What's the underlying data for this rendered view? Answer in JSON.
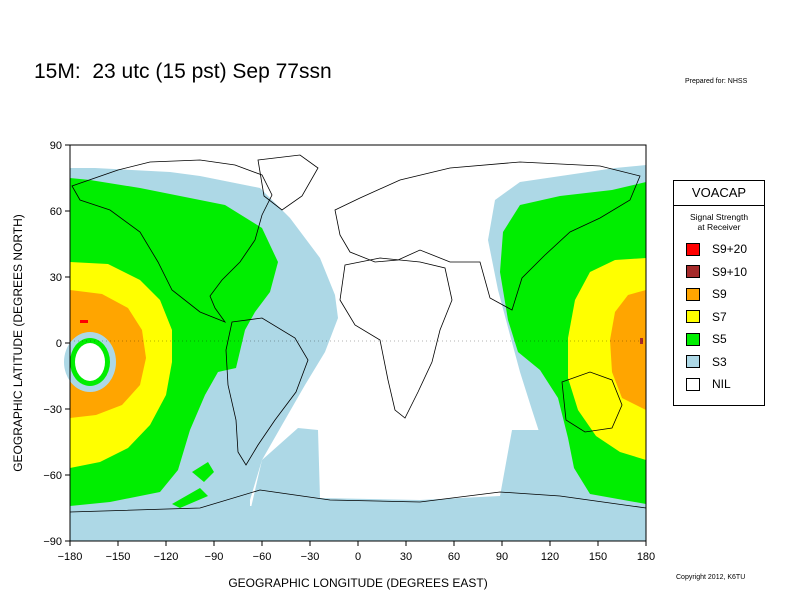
{
  "header": {
    "title": "15M:  23 utc (15 pst) Sep 77ssn",
    "prepared_for": "Prepared for: NHSS"
  },
  "footer": {
    "copyright": "Copyright 2012, K6TU"
  },
  "legend": {
    "title": "VOACAP",
    "subtitle_line1": "Signal Strength",
    "subtitle_line2": "at Receiver",
    "items": [
      {
        "label": "S9+20",
        "color": "#ff0000"
      },
      {
        "label": "S9+10",
        "color": "#a52a2a"
      },
      {
        "label": "S9",
        "color": "#ffa500"
      },
      {
        "label": "S7",
        "color": "#ffff00"
      },
      {
        "label": "S5",
        "color": "#00ee00"
      },
      {
        "label": "S3",
        "color": "#add8e6"
      },
      {
        "label": "NIL",
        "color": "#ffffff"
      }
    ]
  },
  "map": {
    "xlabel": "GEOGRAPHIC LONGITUDE (DEGREES EAST)",
    "ylabel": "GEOGRAPHIC LATITUDE (DEGREES NORTH)",
    "x_ticks": [
      "−180",
      "−150",
      "−120",
      "−90",
      "−60",
      "−30",
      "0",
      "30",
      "60",
      "90",
      "120",
      "150",
      "180"
    ],
    "y_ticks": [
      "90",
      "60",
      "30",
      "0",
      "−30",
      "−60",
      "−90"
    ]
  }
}
